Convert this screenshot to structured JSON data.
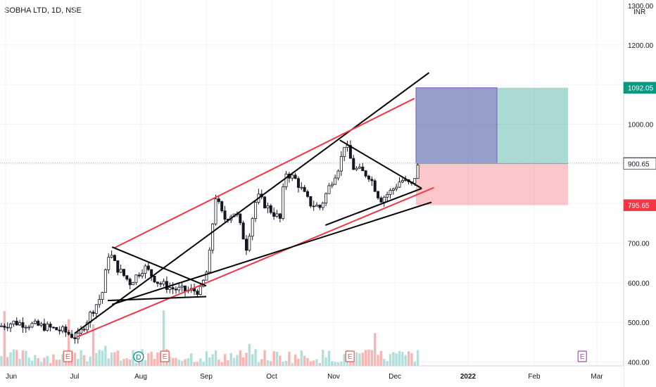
{
  "title": "SOBHA LTD, 1D, NSE",
  "currency": "INR",
  "price_axis_top_label": "1300.00",
  "colors": {
    "up": "#26a69a",
    "down": "#ef5350",
    "target": "#089981",
    "stop": "#f23645",
    "grid": "#f0f3fa",
    "bodyline": "#131722"
  },
  "chart_data": {
    "type": "candlestick",
    "title": "SOBHA LTD, 1D, NSE",
    "y_unit": "INR",
    "ylim": [
      390,
      1310
    ],
    "y_ticks": [
      400,
      500,
      600,
      700,
      800,
      900,
      1000,
      1100,
      1200
    ],
    "y_tick_labels": [
      "400.00",
      "500.00",
      "600.00",
      "700.00",
      "800.00",
      "900.00",
      "1000.00",
      "1100.00",
      "1200.00"
    ],
    "x_ticks": [
      "Jun",
      "Jul",
      "Aug",
      "Sep",
      "Oct",
      "Nov",
      "Dec",
      "2022",
      "Feb",
      "Mar"
    ],
    "price_tags": [
      {
        "label": "1092.05",
        "value": 1092.05,
        "style": "target"
      },
      {
        "label": "902.05",
        "value": 902.05,
        "style": "last"
      },
      {
        "label": "900.65",
        "value": 900.65,
        "style": "entry"
      },
      {
        "label": "795.65",
        "value": 795.65,
        "style": "stop"
      }
    ],
    "position": {
      "entry": 900.65,
      "target": 1092.05,
      "stop": 795.65
    },
    "events": [
      {
        "label": "E",
        "date": "Jun 28"
      },
      {
        "label": "D",
        "date": "Jul 30"
      },
      {
        "label": "E",
        "date": "Aug 12"
      },
      {
        "label": "E",
        "date": "Nov 09"
      },
      {
        "label": "E",
        "date": "Feb 24"
      }
    ],
    "trendlines": [
      {
        "color": "black",
        "from": [
          "Jul 01",
          472
        ],
        "to": [
          "Dec 15",
          1130
        ]
      },
      {
        "color": "red",
        "from": [
          "Jul 19",
          688
        ],
        "to": [
          "Dec 09",
          1065
        ]
      },
      {
        "color": "red",
        "from": [
          "Jul 02",
          463
        ],
        "to": [
          "Dec 17",
          840
        ]
      },
      {
        "color": "black",
        "from": [
          "Jul 18",
          545
        ],
        "to": [
          "Dec 16",
          803
        ]
      }
    ]
  }
}
